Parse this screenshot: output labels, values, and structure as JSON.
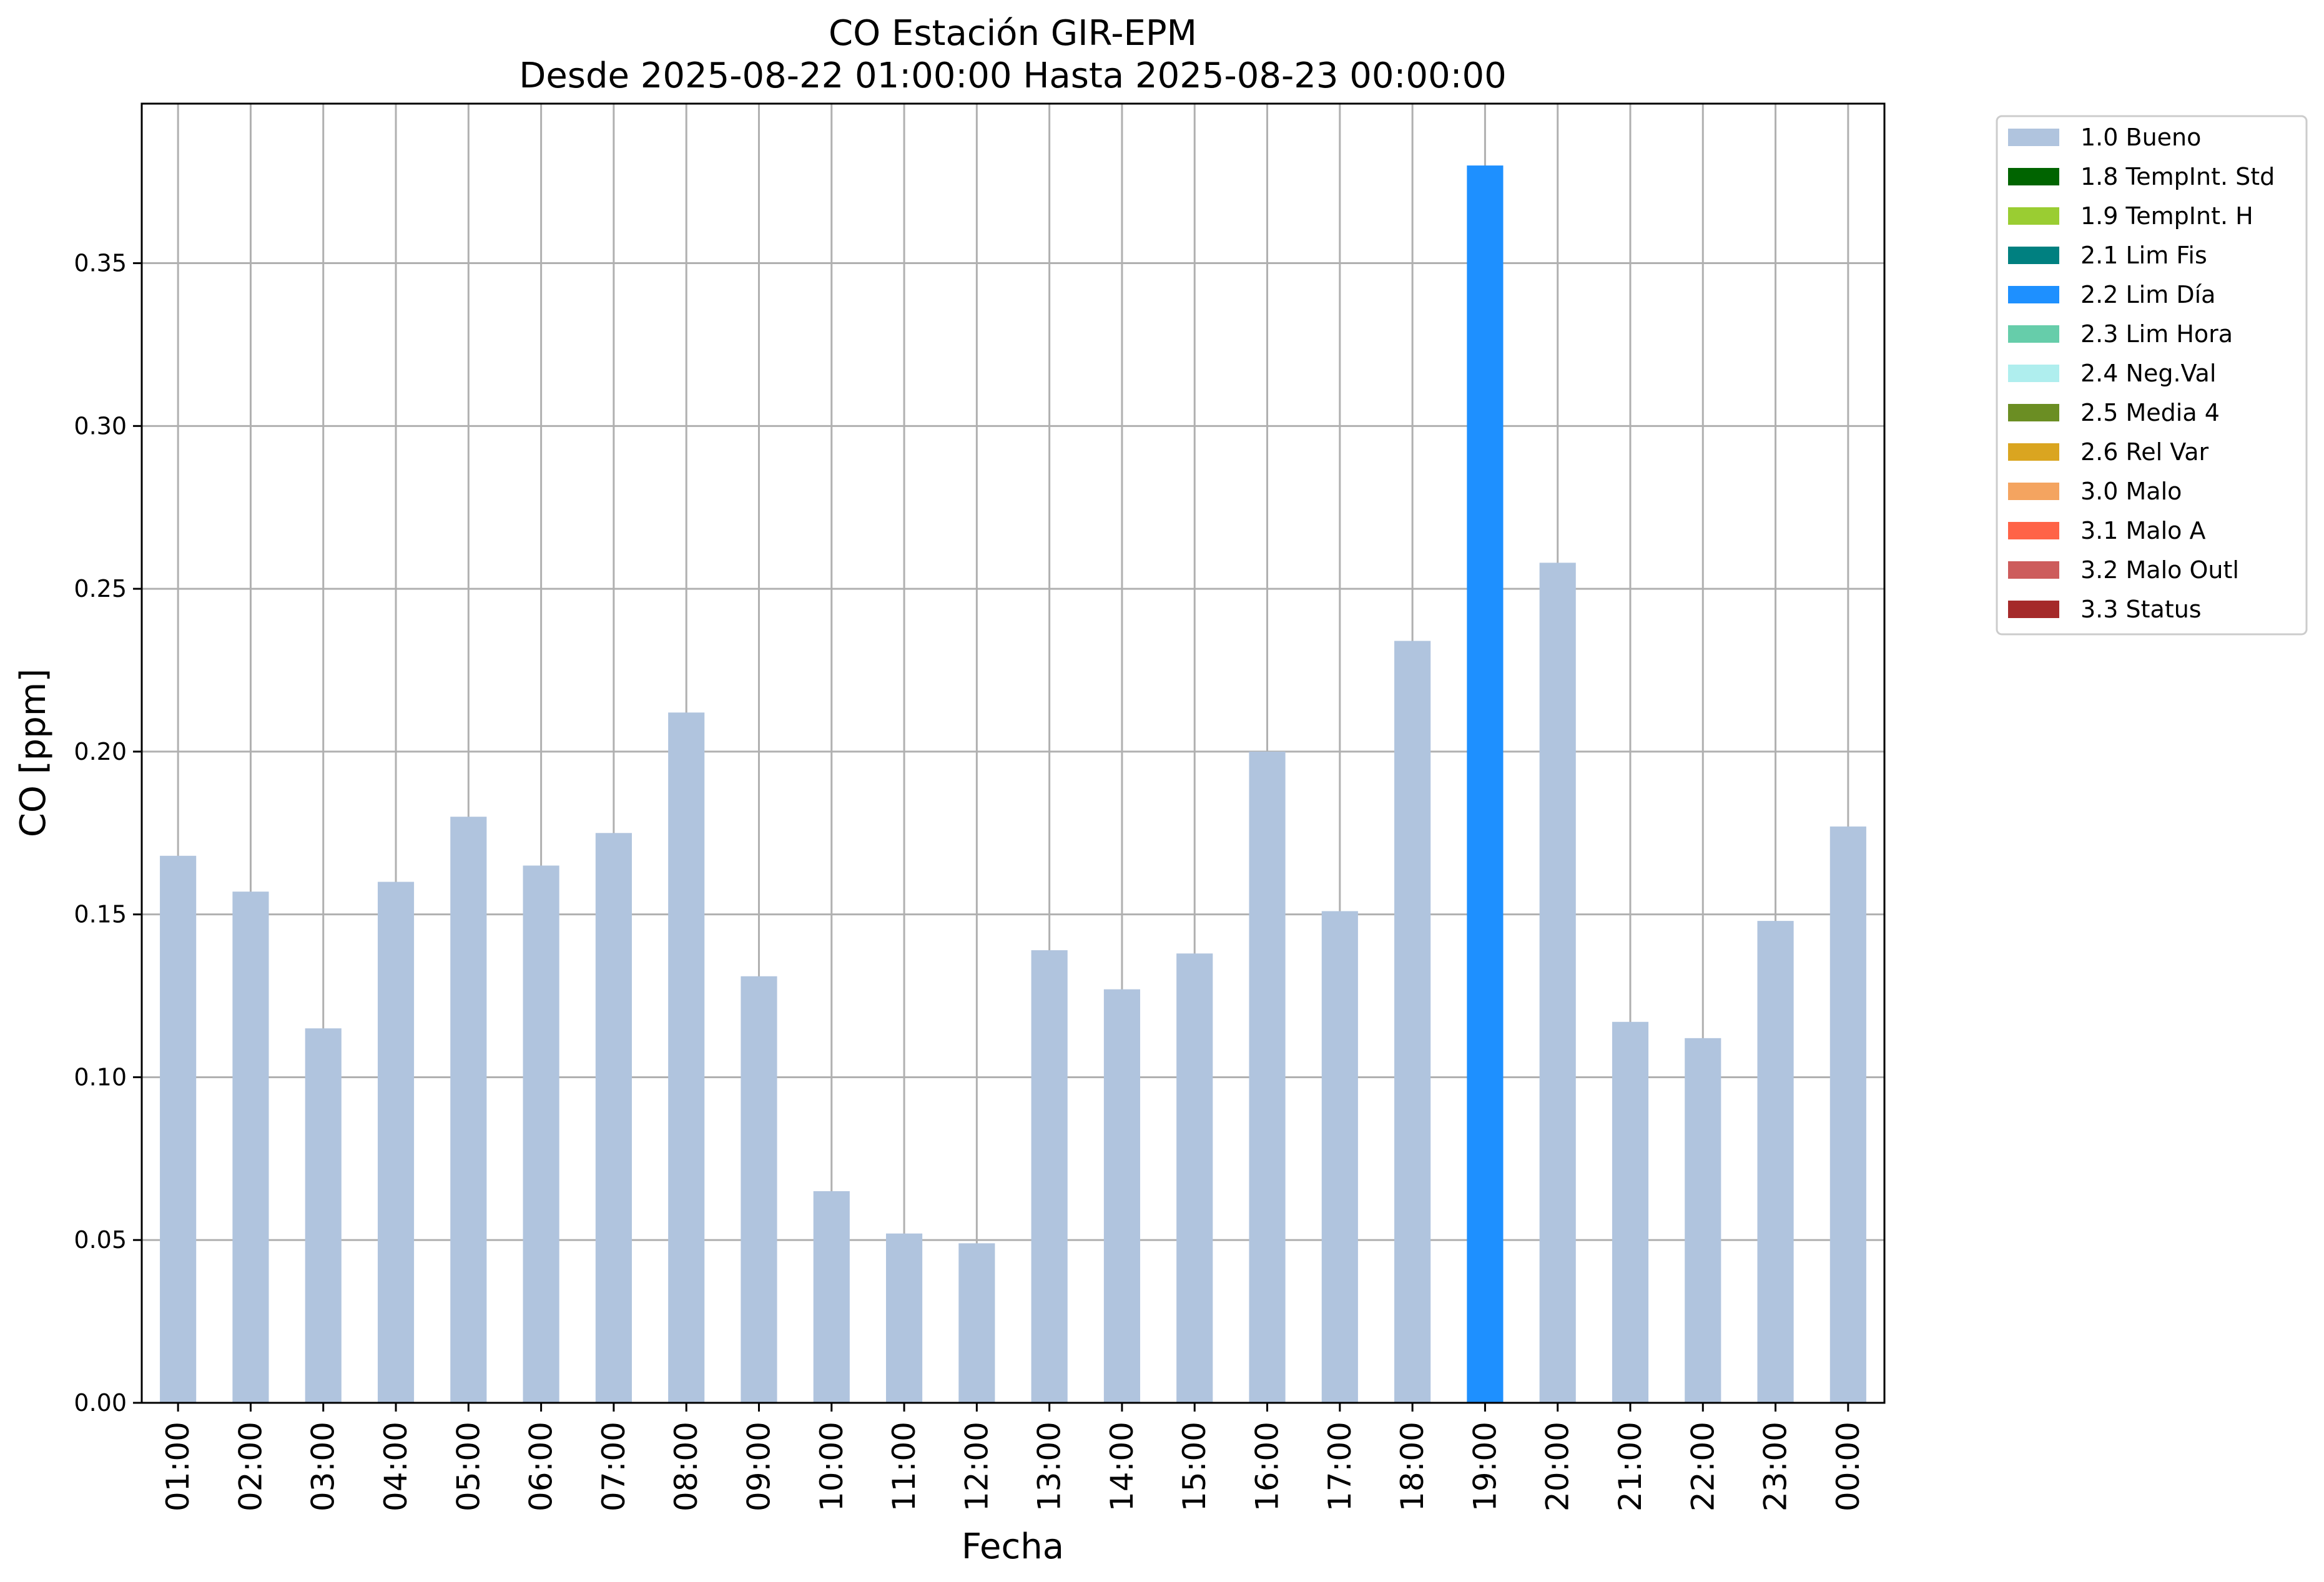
{
  "chart_data": {
    "type": "bar",
    "title": "CO Estación GIR-EPM",
    "subtitle": "Desde 2025-08-22 01:00:00 Hasta 2025-08-23 00:00:00",
    "xlabel": "Fecha",
    "ylabel": "CO [ppm]",
    "ylim": [
      0,
      0.399
    ],
    "yticks": [
      "0.00",
      "0.05",
      "0.10",
      "0.15",
      "0.20",
      "0.25",
      "0.30",
      "0.35"
    ],
    "grid": true,
    "legend_position": "outside-top-right",
    "categories": [
      "01:00",
      "02:00",
      "03:00",
      "04:00",
      "05:00",
      "06:00",
      "07:00",
      "08:00",
      "09:00",
      "10:00",
      "11:00",
      "12:00",
      "13:00",
      "14:00",
      "15:00",
      "16:00",
      "17:00",
      "18:00",
      "19:00",
      "20:00",
      "21:00",
      "22:00",
      "23:00",
      "00:00"
    ],
    "values": [
      0.168,
      0.157,
      0.115,
      0.16,
      0.18,
      0.165,
      0.175,
      0.212,
      0.131,
      0.065,
      0.052,
      0.049,
      0.139,
      0.127,
      0.138,
      0.2,
      0.151,
      0.234,
      0.38,
      0.258,
      0.117,
      0.112,
      0.148,
      0.177
    ],
    "flags": [
      "1.0 Bueno",
      "1.0 Bueno",
      "1.0 Bueno",
      "1.0 Bueno",
      "1.0 Bueno",
      "1.0 Bueno",
      "1.0 Bueno",
      "1.0 Bueno",
      "1.0 Bueno",
      "1.0 Bueno",
      "1.0 Bueno",
      "1.0 Bueno",
      "1.0 Bueno",
      "1.0 Bueno",
      "1.0 Bueno",
      "1.0 Bueno",
      "1.0 Bueno",
      "1.0 Bueno",
      "2.2 Lim Día",
      "1.0 Bueno",
      "1.0 Bueno",
      "1.0 Bueno",
      "1.0 Bueno",
      "1.0 Bueno"
    ],
    "legend": [
      {
        "label": "1.0 Bueno",
        "color": "#b0c4de"
      },
      {
        "label": "1.8 TempInt. Std",
        "color": "#006400"
      },
      {
        "label": "1.9 TempInt. H",
        "color": "#9acd32"
      },
      {
        "label": "2.1 Lim Fis",
        "color": "#008080"
      },
      {
        "label": "2.2 Lim Día",
        "color": "#1e90ff"
      },
      {
        "label": "2.3 Lim Hora",
        "color": "#66cdaa"
      },
      {
        "label": "2.4 Neg.Val",
        "color": "#afeeee"
      },
      {
        "label": "2.5 Media 4",
        "color": "#6b8e23"
      },
      {
        "label": "2.6 Rel Var",
        "color": "#daa520"
      },
      {
        "label": "3.0 Malo",
        "color": "#f4a460"
      },
      {
        "label": "3.1 Malo A",
        "color": "#ff6347"
      },
      {
        "label": "3.2 Malo Outl",
        "color": "#cd5c5c"
      },
      {
        "label": "3.3 Status",
        "color": "#a52a2a"
      }
    ]
  }
}
